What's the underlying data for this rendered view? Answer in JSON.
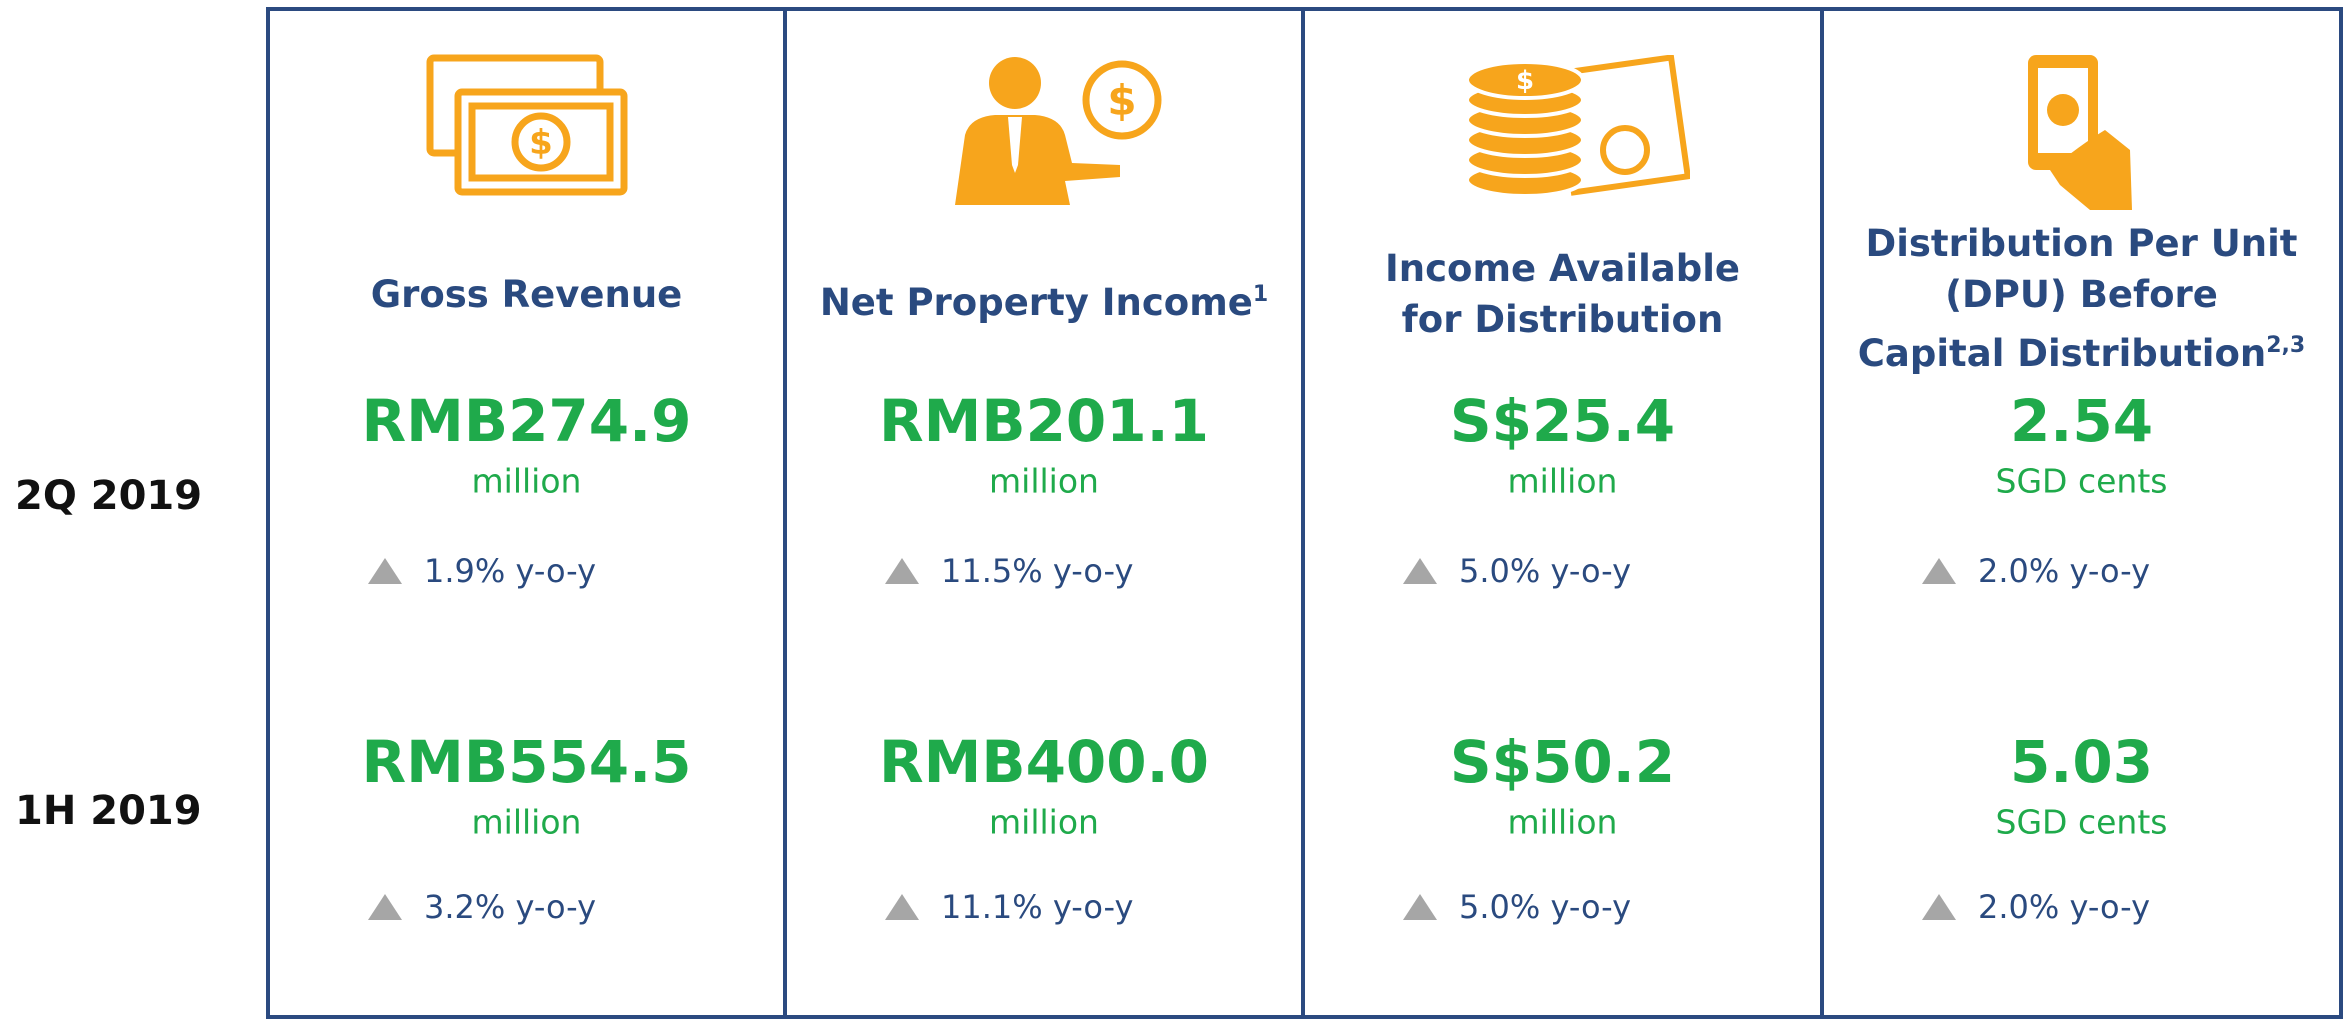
{
  "row_labels": [
    "2Q 2019",
    "1H 2019"
  ],
  "columns": [
    {
      "title_lines": [
        "Gross Revenue"
      ],
      "note": null,
      "periods": [
        {
          "value": "RMB274.9",
          "unit": "million",
          "change": "1.9% y-o-y"
        },
        {
          "value": "RMB554.5",
          "unit": "million",
          "change": "3.2% y-o-y"
        }
      ]
    },
    {
      "title_lines": [
        "Net Property Income"
      ],
      "note": "1",
      "periods": [
        {
          "value": "RMB201.1",
          "unit": "million",
          "change": "11.5% y-o-y"
        },
        {
          "value": "RMB400.0",
          "unit": "million",
          "change": "11.1% y-o-y"
        }
      ]
    },
    {
      "title_lines": [
        "Income Available",
        "for Distribution"
      ],
      "note": null,
      "periods": [
        {
          "value": "S$25.4",
          "unit": "million",
          "change": "5.0% y-o-y"
        },
        {
          "value": "S$50.2",
          "unit": "million",
          "change": "5.0% y-o-y"
        }
      ]
    },
    {
      "title_lines": [
        "Distribution Per Unit",
        "(DPU) Before",
        "Capital Distribution"
      ],
      "note": "2,3",
      "periods": [
        {
          "value": "2.54",
          "unit": "SGD cents",
          "change": "2.0% y-o-y"
        },
        {
          "value": "5.03",
          "unit": "SGD cents",
          "change": "2.0% y-o-y"
        }
      ]
    }
  ]
}
